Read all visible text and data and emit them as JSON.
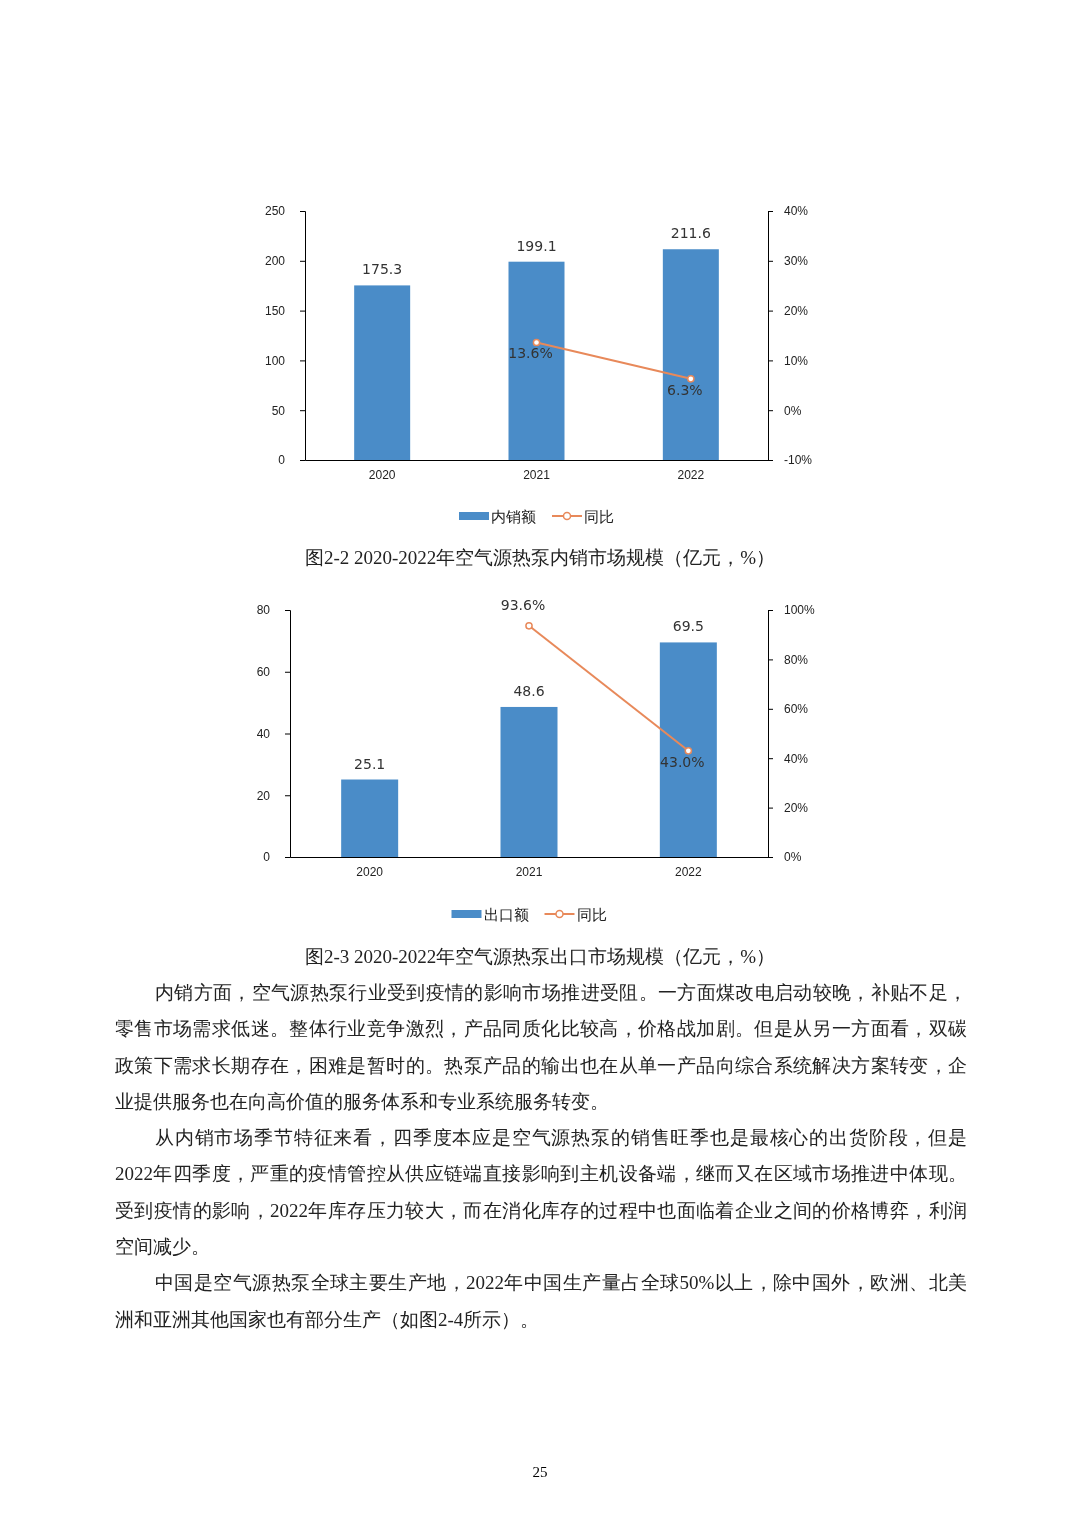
{
  "chart_data": [
    {
      "type": "bar",
      "title": "图2-2 2020-2022年空气源热泵内销市场规模（亿元，%）",
      "categories": [
        "2020",
        "2021",
        "2022"
      ],
      "series": [
        {
          "name": "内销额",
          "color": "#4a8cc8",
          "values": [
            175.3,
            199.1,
            211.6
          ],
          "value_labels": [
            "175.3",
            "199.1",
            "211.6"
          ]
        },
        {
          "name": "同比",
          "type": "line",
          "axis": "y2",
          "color": "#e8895a",
          "values": [
            null,
            13.6,
            6.3
          ],
          "value_labels": [
            null,
            "13.6%",
            "6.3%"
          ]
        }
      ],
      "ylim": [
        0,
        250
      ],
      "yticks": [
        0,
        50,
        100,
        150,
        200,
        250
      ],
      "y2lim": [
        -10,
        40
      ],
      "y2ticks": [
        {
          "value": -10,
          "label": "-10%"
        },
        {
          "value": 0,
          "label": "0%"
        },
        {
          "value": 10,
          "label": "10%"
        },
        {
          "value": 20,
          "label": "20%"
        },
        {
          "value": 30,
          "label": "30%"
        },
        {
          "value": 40,
          "label": "40%"
        }
      ],
      "legend": "bottom",
      "marker": "circle",
      "grid": false
    },
    {
      "type": "bar",
      "title": "图2-3 2020-2022年空气源热泵出口市场规模（亿元，%）",
      "categories": [
        "2020",
        "2021",
        "2022"
      ],
      "series": [
        {
          "name": "出口额",
          "color": "#4a8cc8",
          "values": [
            25.1,
            48.6,
            69.5
          ],
          "value_labels": [
            "25.1",
            "48.6",
            "69.5"
          ]
        },
        {
          "name": "同比",
          "type": "line",
          "axis": "y2",
          "color": "#e8895a",
          "values": [
            null,
            93.6,
            43.0
          ],
          "value_labels": [
            null,
            "93.6%",
            "43.0%"
          ]
        }
      ],
      "ylim": [
        0,
        80
      ],
      "yticks": [
        0,
        20,
        40,
        60,
        80
      ],
      "y2lim": [
        0,
        100
      ],
      "y2ticks": [
        {
          "value": 0,
          "label": "0%"
        },
        {
          "value": 20,
          "label": "20%"
        },
        {
          "value": 40,
          "label": "40%"
        },
        {
          "value": 60,
          "label": "60%"
        },
        {
          "value": 80,
          "label": "80%"
        },
        {
          "value": 100,
          "label": "100%"
        }
      ],
      "legend": "bottom",
      "marker": "circle",
      "grid": false,
      "annotations": [
        "内销方面，空气源热泵行业受到疫情的影响市场推进受阻。一方面煤改电启动较晚，补贴不足，零售市场需求低迷。整体行业竞争激烈，产品同质化比较高，价格战加剧。但是从另一方面看，双碳政策下需求长期存在，困难是暂时的。热泵产品的输出也在从单一产品向综合系统解决方案转变，企业提供服务也在向高价值的服务体系和专业系统服务转变。",
        "从内销市场季节特征来看，四季度本应是空气源热泵的销售旺季也是最核心的出货阶段，但是2022年四季度，严重的疫情管控从供应链端直接影响到主机设备端，继而又在区域市场推进中体现。受到疫情的影响，2022年库存压力较大，而在消化库存的过程中也面临着企业之间的价格博弈，利润空间减少。",
        "中国是空气源热泵全球主要生产地，2022年中国生产量占全球50%以上，除中国外，欧洲、北美洲和亚洲其他国家也有部分生产（如图2-4所示）。",
        "25"
      ]
    }
  ]
}
